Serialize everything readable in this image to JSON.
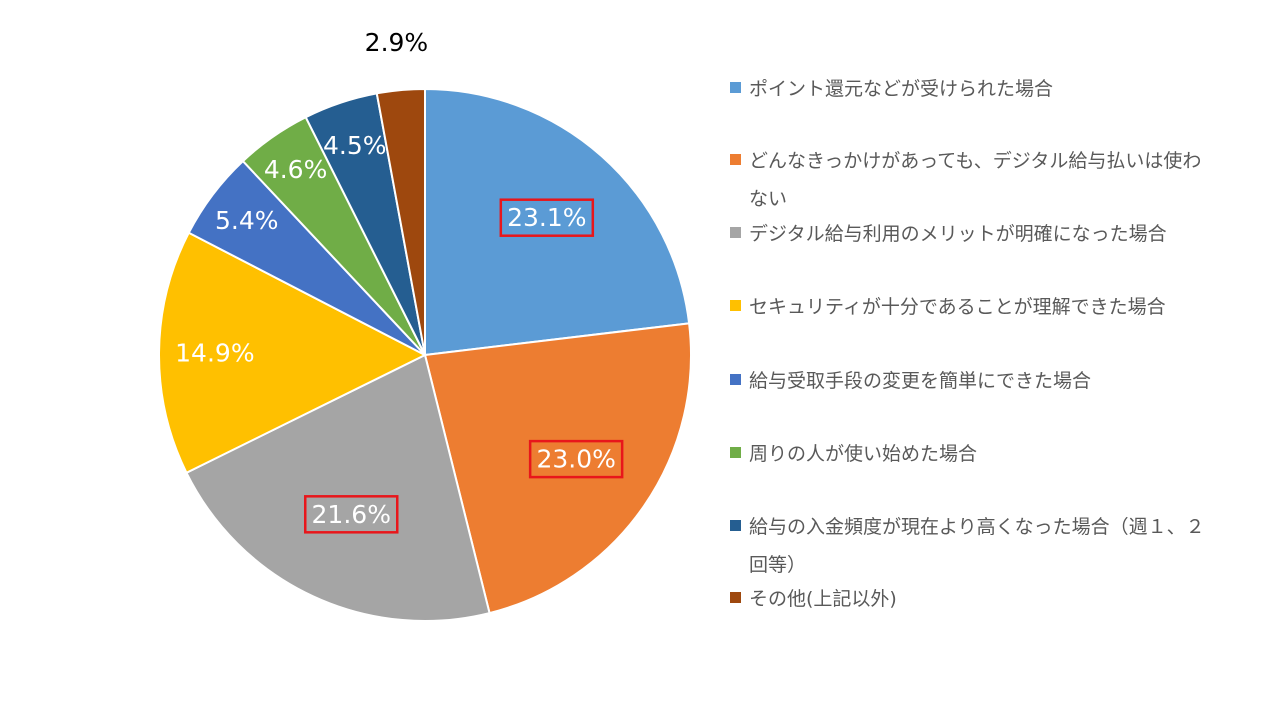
{
  "chart_data": {
    "type": "pie",
    "start_angle_deg": 0,
    "direction": "clockwise",
    "legend_position": "right",
    "slices": [
      {
        "label": "ポイント還元などが受けられた場合",
        "value": 23.1,
        "display": "23.1%",
        "color": "#5B9BD5",
        "highlighted": true
      },
      {
        "label": "どんなきっかけがあっても、デジタル給与払いは使わない",
        "value": 23.0,
        "display": "23.0%",
        "color": "#ED7D31",
        "highlighted": true
      },
      {
        "label": "デジタル給与利用のメリットが明確になった場合",
        "value": 21.6,
        "display": "21.6%",
        "color": "#A5A5A5",
        "highlighted": true
      },
      {
        "label": "セキュリティが十分であることが理解できた場合",
        "value": 14.9,
        "display": "14.9%",
        "color": "#FFC000",
        "highlighted": false
      },
      {
        "label": "給与受取手段の変更を簡単にできた場合",
        "value": 5.4,
        "display": "5.4%",
        "color": "#4472C4",
        "highlighted": false
      },
      {
        "label": "周りの人が使い始めた場合",
        "value": 4.6,
        "display": "4.6%",
        "color": "#70AD47",
        "highlighted": false
      },
      {
        "label": "給与の入金頻度が現在より高くなった場合（週１、２回等）",
        "value": 4.5,
        "display": "4.5%",
        "color": "#255E91",
        "highlighted": false
      },
      {
        "label": "その他(上記以外)",
        "value": 2.9,
        "display": "2.9%",
        "color": "#9E480E",
        "highlighted": false
      }
    ],
    "highlight_color": "#E8161B"
  }
}
